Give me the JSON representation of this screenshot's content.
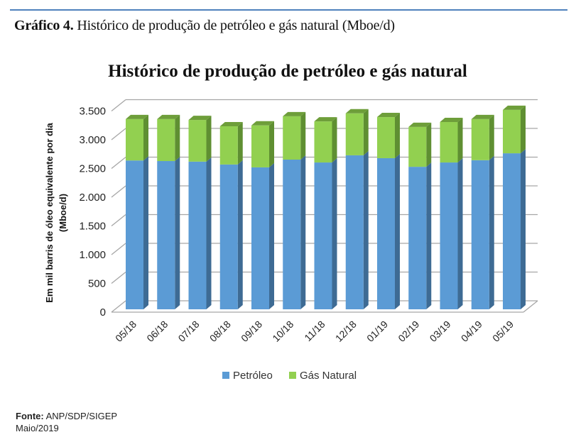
{
  "caption": {
    "label": "Gráfico 4.",
    "text": " Histórico de produção de petróleo e gás natural (Mboe/d)"
  },
  "footer": {
    "source_label": "Fonte:",
    "source_value": " ANP/SDP/SIGEP",
    "date": "Maio/2019"
  },
  "colors": {
    "petroleo": "#5b9bd5",
    "petroleo_side": "#3e6b94",
    "gas": "#92d050",
    "gas_side": "#5f8f32",
    "gas_top": "#6e9e3a",
    "grid": "#a6a6a6"
  },
  "chart_data": {
    "type": "bar",
    "stacked": true,
    "three_d": true,
    "title": "Histórico de produção de petróleo e gás natural",
    "xlabel": "",
    "ylabel": "Em mil barris de óleo equivalente por dia (Mboe/d)",
    "ylabel_lines": [
      "Em mil barris de óleo equivalente por dia",
      "(Mboe/d)"
    ],
    "ylim": [
      0,
      3500
    ],
    "yticks": [
      0,
      500,
      1000,
      1500,
      2000,
      2500,
      3000,
      3500
    ],
    "ytick_labels": [
      "0",
      "500",
      "1.000",
      "1.500",
      "2.000",
      "2.500",
      "3.000",
      "3.500"
    ],
    "grid": true,
    "legend_position": "bottom",
    "categories": [
      "05/18",
      "06/18",
      "07/18",
      "08/18",
      "09/18",
      "10/18",
      "11/18",
      "12/18",
      "01/19",
      "02/19",
      "03/19",
      "04/19",
      "05/19"
    ],
    "series": [
      {
        "name": "Petróleo",
        "values": [
          2590,
          2580,
          2570,
          2520,
          2470,
          2605,
          2555,
          2680,
          2630,
          2480,
          2555,
          2595,
          2715
        ]
      },
      {
        "name": "Gás Natural",
        "values": [
          720,
          730,
          725,
          665,
          730,
          755,
          715,
          730,
          715,
          695,
          705,
          715,
          755
        ]
      }
    ]
  }
}
